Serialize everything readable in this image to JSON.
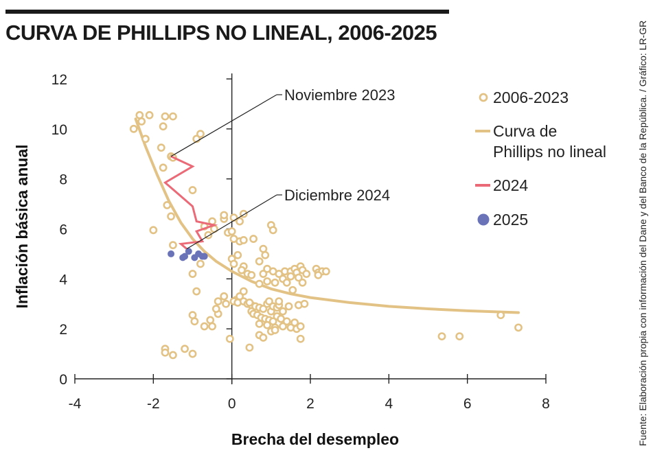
{
  "title": "CURVA DE PHILLIPS NO LINEAL, 2006-2025",
  "source": "Fuente: Elaboración propia con información del Dane y del Banco de la República. / Gráfico: LR-GR",
  "colors": {
    "scatter": "#e3c285",
    "curve": "#e3c285",
    "line2024": "#ea6a77",
    "dots2025": "#6b73b8"
  },
  "chart_data": {
    "type": "scatter",
    "xlabel": "Brecha del desempleo",
    "ylabel": "Inflación básica anual",
    "xlim": [
      -4,
      8
    ],
    "ylim": [
      0,
      12
    ],
    "x_ticks": [
      -4,
      -2,
      0,
      2,
      4,
      6,
      8
    ],
    "y_ticks": [
      0,
      2,
      4,
      6,
      8,
      10,
      12
    ],
    "x_tick_labels": [
      "-4",
      "-2",
      "0",
      "2",
      "4",
      "6",
      "8"
    ],
    "y_tick_labels": [
      "0",
      "2",
      "4",
      "6",
      "8",
      "10",
      "12"
    ],
    "grid": false,
    "legend_position": "right",
    "legend": [
      {
        "key": "scatter",
        "label": "2006-2023"
      },
      {
        "key": "curve",
        "label": "Curva de Phillips no lineal"
      },
      {
        "key": "line2024",
        "label": "2024"
      },
      {
        "key": "dots2025",
        "label": "2025"
      }
    ],
    "annotations": [
      {
        "text": "Noviembre 2023",
        "point": [
          -1.55,
          8.9
        ]
      },
      {
        "text": "Diciembre 2024",
        "point": [
          -1.15,
          5.2
        ]
      }
    ],
    "series": [
      {
        "name": "2006-2023",
        "type": "scatter",
        "points": [
          [
            -2.35,
            10.55
          ],
          [
            -2.3,
            10.3
          ],
          [
            -2.1,
            10.55
          ],
          [
            -2.5,
            10.0
          ],
          [
            -2.2,
            9.6
          ],
          [
            -1.7,
            10.5
          ],
          [
            -1.5,
            10.5
          ],
          [
            -1.75,
            10.1
          ],
          [
            -0.8,
            9.8
          ],
          [
            -0.9,
            9.6
          ],
          [
            -1.8,
            9.25
          ],
          [
            -1.55,
            8.9
          ],
          [
            -1.5,
            8.85
          ],
          [
            -1.75,
            8.45
          ],
          [
            -1.0,
            7.55
          ],
          [
            -1.65,
            6.95
          ],
          [
            -1.55,
            6.5
          ],
          [
            -2.0,
            5.95
          ],
          [
            -1.5,
            5.35
          ],
          [
            -0.8,
            4.6
          ],
          [
            -1.0,
            4.2
          ],
          [
            -0.9,
            3.5
          ],
          [
            -1.0,
            2.55
          ],
          [
            -0.95,
            2.3
          ],
          [
            -0.7,
            2.1
          ],
          [
            -0.5,
            2.1
          ],
          [
            -0.55,
            2.35
          ],
          [
            -0.35,
            2.6
          ],
          [
            -0.4,
            2.8
          ],
          [
            -0.35,
            3.1
          ],
          [
            -0.2,
            3.3
          ],
          [
            -0.15,
            3.0
          ],
          [
            -1.7,
            1.2
          ],
          [
            -1.7,
            1.05
          ],
          [
            -1.5,
            0.95
          ],
          [
            -1.2,
            1.2
          ],
          [
            -1.0,
            1.0
          ],
          [
            0.45,
            1.25
          ],
          [
            -0.05,
            1.6
          ],
          [
            -0.7,
            6.1
          ],
          [
            -0.5,
            6.3
          ],
          [
            -0.45,
            6.0
          ],
          [
            -0.2,
            6.4
          ],
          [
            -0.2,
            6.55
          ],
          [
            0.05,
            6.45
          ],
          [
            0.3,
            6.6
          ],
          [
            0.2,
            6.3
          ],
          [
            -0.1,
            5.85
          ],
          [
            0.0,
            5.9
          ],
          [
            0.2,
            5.5
          ],
          [
            0.3,
            5.55
          ],
          [
            0.05,
            5.6
          ],
          [
            -0.6,
            5.75
          ],
          [
            0.55,
            5.6
          ],
          [
            1.0,
            6.15
          ],
          [
            1.05,
            5.95
          ],
          [
            0.8,
            5.2
          ],
          [
            0.85,
            4.95
          ],
          [
            0.7,
            4.7
          ],
          [
            0.0,
            4.8
          ],
          [
            0.05,
            4.6
          ],
          [
            0.15,
            4.95
          ],
          [
            0.3,
            4.5
          ],
          [
            0.4,
            4.2
          ],
          [
            0.5,
            4.15
          ],
          [
            0.25,
            4.35
          ],
          [
            0.8,
            4.2
          ],
          [
            0.9,
            4.4
          ],
          [
            1.05,
            4.3
          ],
          [
            1.2,
            4.2
          ],
          [
            1.35,
            4.3
          ],
          [
            1.5,
            4.3
          ],
          [
            1.6,
            4.4
          ],
          [
            1.65,
            4.25
          ],
          [
            1.75,
            4.5
          ],
          [
            1.8,
            4.35
          ],
          [
            1.9,
            4.2
          ],
          [
            1.7,
            4.05
          ],
          [
            1.5,
            4.1
          ],
          [
            1.3,
            4.0
          ],
          [
            1.1,
            3.85
          ],
          [
            0.9,
            3.9
          ],
          [
            0.7,
            3.8
          ],
          [
            1.4,
            3.85
          ],
          [
            1.8,
            3.85
          ],
          [
            1.55,
            3.55
          ],
          [
            2.15,
            4.4
          ],
          [
            2.2,
            4.25
          ],
          [
            2.3,
            4.3
          ],
          [
            2.4,
            4.3
          ],
          [
            2.2,
            4.15
          ],
          [
            0.1,
            3.15
          ],
          [
            0.2,
            3.3
          ],
          [
            0.3,
            3.5
          ],
          [
            0.05,
            3.1
          ],
          [
            0.15,
            3.05
          ],
          [
            0.3,
            3.1
          ],
          [
            0.4,
            3.0
          ],
          [
            0.5,
            2.95
          ],
          [
            0.6,
            2.9
          ],
          [
            0.7,
            2.85
          ],
          [
            0.8,
            2.8
          ],
          [
            0.9,
            3.0
          ],
          [
            1.0,
            2.7
          ],
          [
            1.05,
            2.9
          ],
          [
            1.15,
            2.85
          ],
          [
            0.5,
            2.7
          ],
          [
            0.55,
            2.6
          ],
          [
            0.65,
            2.55
          ],
          [
            0.75,
            2.45
          ],
          [
            0.85,
            2.4
          ],
          [
            0.95,
            2.35
          ],
          [
            1.05,
            2.3
          ],
          [
            1.15,
            2.5
          ],
          [
            1.25,
            2.4
          ],
          [
            0.7,
            2.2
          ],
          [
            0.9,
            2.15
          ],
          [
            1.1,
            2.05
          ],
          [
            1.3,
            2.1
          ],
          [
            1.5,
            2.05
          ],
          [
            1.65,
            2.0
          ],
          [
            1.75,
            2.1
          ],
          [
            1.6,
            2.25
          ],
          [
            1.4,
            2.3
          ],
          [
            1.3,
            2.7
          ],
          [
            1.2,
            2.95
          ],
          [
            1.45,
            2.9
          ],
          [
            1.7,
            2.95
          ],
          [
            1.85,
            3.0
          ],
          [
            0.7,
            1.75
          ],
          [
            0.8,
            1.65
          ],
          [
            1.0,
            1.9
          ],
          [
            1.1,
            1.95
          ],
          [
            1.75,
            1.6
          ],
          [
            0.95,
            3.1
          ],
          [
            1.2,
            3.1
          ],
          [
            0.45,
            3.05
          ],
          [
            5.35,
            1.7
          ],
          [
            5.8,
            1.7
          ],
          [
            6.85,
            2.55
          ],
          [
            7.3,
            2.05
          ]
        ]
      },
      {
        "name": "Curva de Phillips no lineal",
        "type": "line",
        "points": [
          [
            -2.45,
            10.4
          ],
          [
            -2.2,
            9.3
          ],
          [
            -1.9,
            8.15
          ],
          [
            -1.6,
            7.1
          ],
          [
            -1.3,
            6.25
          ],
          [
            -1.0,
            5.6
          ],
          [
            -0.7,
            5.1
          ],
          [
            -0.4,
            4.7
          ],
          [
            0.0,
            4.3
          ],
          [
            0.5,
            3.9
          ],
          [
            1.0,
            3.6
          ],
          [
            1.5,
            3.4
          ],
          [
            2.0,
            3.25
          ],
          [
            3.0,
            3.05
          ],
          [
            4.0,
            2.9
          ],
          [
            5.0,
            2.8
          ],
          [
            6.0,
            2.72
          ],
          [
            7.3,
            2.65
          ]
        ]
      },
      {
        "name": "2024",
        "type": "line",
        "points": [
          [
            -1.55,
            8.9
          ],
          [
            -1.0,
            8.5
          ],
          [
            -1.7,
            7.85
          ],
          [
            -1.0,
            6.9
          ],
          [
            -0.9,
            6.3
          ],
          [
            -0.45,
            6.15
          ],
          [
            -0.9,
            5.9
          ],
          [
            -0.75,
            5.5
          ],
          [
            -1.3,
            5.4
          ],
          [
            -1.15,
            5.2
          ]
        ]
      },
      {
        "name": "2025",
        "type": "scatter",
        "points": [
          [
            -1.55,
            5.0
          ],
          [
            -1.25,
            4.85
          ],
          [
            -1.2,
            4.9
          ],
          [
            -1.1,
            5.1
          ],
          [
            -0.95,
            4.85
          ],
          [
            -0.85,
            5.0
          ],
          [
            -0.75,
            4.9
          ],
          [
            -0.7,
            4.9
          ]
        ]
      }
    ]
  }
}
